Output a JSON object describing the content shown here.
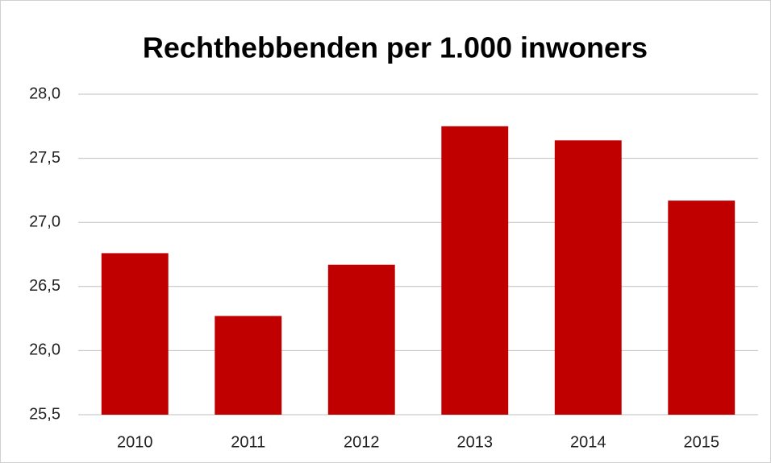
{
  "chart_data": {
    "type": "bar",
    "title": "Rechthebbenden per 1.000 inwoners",
    "categories": [
      "2010",
      "2011",
      "2012",
      "2013",
      "2014",
      "2015"
    ],
    "values": [
      26.76,
      26.27,
      26.67,
      27.75,
      27.64,
      27.17
    ],
    "color": "#c00000",
    "ylim": [
      25.5,
      28
    ],
    "yticks": [
      {
        "value": 25.5,
        "label": "25,5"
      },
      {
        "value": 26,
        "label": "26,0"
      },
      {
        "value": 26.5,
        "label": "26,5"
      },
      {
        "value": 27,
        "label": "27,0"
      },
      {
        "value": 27.5,
        "label": "27,5"
      },
      {
        "value": 28,
        "label": "28,0"
      }
    ],
    "grid": true
  }
}
